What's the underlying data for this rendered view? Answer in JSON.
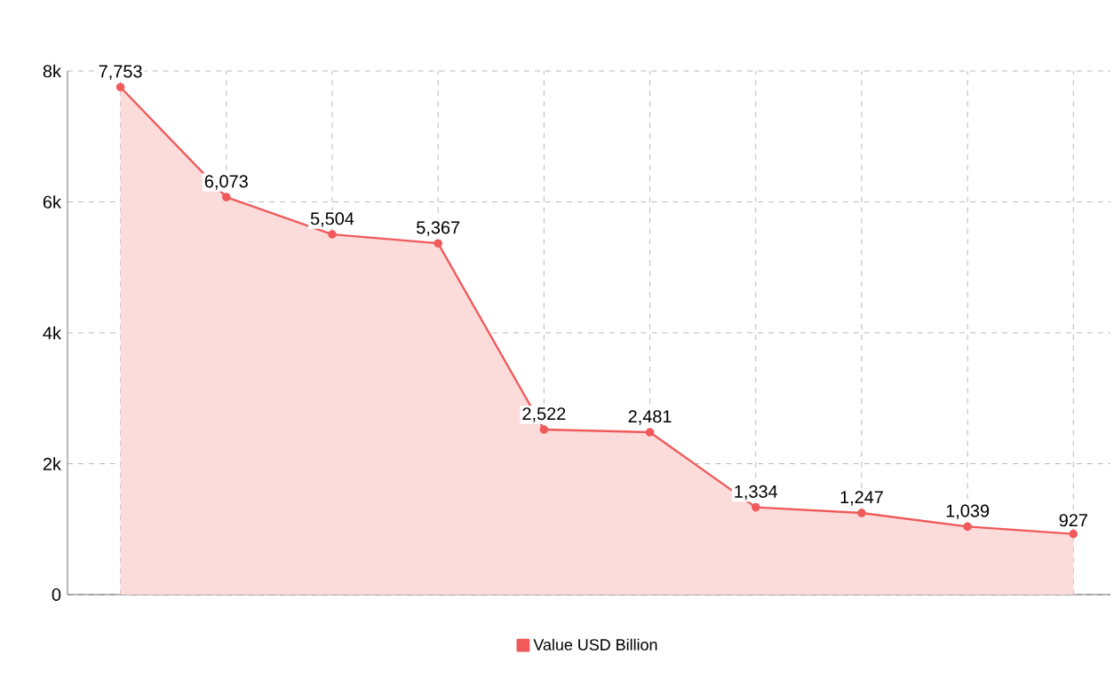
{
  "chart_data": {
    "type": "area",
    "categories": [
      null,
      null,
      null,
      null,
      null,
      null,
      null,
      null,
      null,
      null
    ],
    "series": [
      {
        "name": "Value USD Billion",
        "color": "#f05a5a",
        "values": [
          7753,
          6073,
          5504,
          5367,
          2522,
          2481,
          1334,
          1247,
          1039,
          927
        ]
      }
    ],
    "value_labels": [
      "7,753",
      "6,073",
      "5,504",
      "5,367",
      "2,522",
      "2,481",
      "1,334",
      "1,247",
      "1,039",
      "927"
    ],
    "ylim": [
      0,
      8000
    ],
    "yticks": [
      0,
      {
        "value": 2000,
        "label": "2k"
      },
      {
        "value": 4000,
        "label": "4k"
      },
      {
        "value": 6000,
        "label": "6k"
      },
      {
        "value": 8000,
        "label": "8k"
      }
    ],
    "grid": true,
    "marker": "circle",
    "line_style": "solid",
    "legend": "bottom"
  }
}
